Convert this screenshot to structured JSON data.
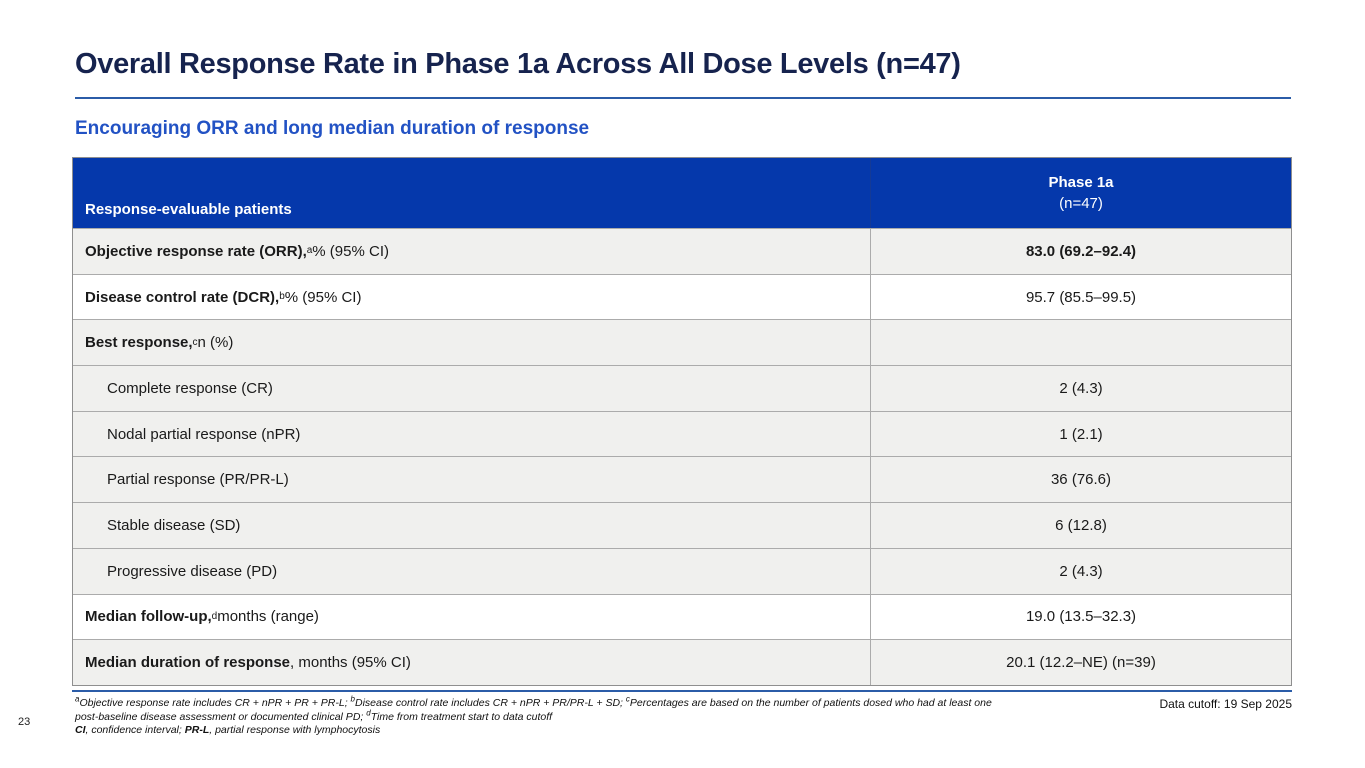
{
  "slide": {
    "title": "Overall Response Rate in Phase 1a Across All Dose Levels (n=47)",
    "subtitle": "Encouraging ORR and long median duration of response",
    "page_number": "23",
    "data_cutoff": "Data cutoff: 19 Sep 2025"
  },
  "colors": {
    "header_blue": "#0538AB",
    "title_navy": "#16234E",
    "subtitle_blue": "#2252C4",
    "row_shade_gray": "#F0F0EE",
    "rule_blue": "#2B5CA8",
    "border_gray": "#ABABAB"
  },
  "table": {
    "header": {
      "col1": "Response-evaluable patients",
      "col2_line1": "Phase 1a",
      "col2_line2": "(n=47)"
    },
    "rows": [
      {
        "label_bold": "Objective response rate (ORR),",
        "label_sup": "a",
        "label_rest": " % (95% CI)",
        "value": "83.0 (69.2–92.4)"
      },
      {
        "label_bold": "Disease control rate (DCR),",
        "label_sup": "b",
        "label_rest": " % (95% CI)",
        "value": "95.7 (85.5–99.5)"
      },
      {
        "label_bold": "Best response,",
        "label_sup": "c",
        "label_rest": " n (%)",
        "value": ""
      },
      {
        "label_bold": "",
        "label_sup": "",
        "label_rest": "Complete response (CR)",
        "value": "2 (4.3)"
      },
      {
        "label_bold": "",
        "label_sup": "",
        "label_rest": "Nodal partial response (nPR)",
        "value": "1 (2.1)"
      },
      {
        "label_bold": "",
        "label_sup": "",
        "label_rest": "Partial response (PR/PR-L)",
        "value": "36 (76.6)"
      },
      {
        "label_bold": "",
        "label_sup": "",
        "label_rest": "Stable disease (SD)",
        "value": "6 (12.8)"
      },
      {
        "label_bold": "",
        "label_sup": "",
        "label_rest": "Progressive disease (PD)",
        "value": "2 (4.3)"
      },
      {
        "label_bold": "Median follow-up,",
        "label_sup": "d",
        "label_rest": " months (range)",
        "value": "19.0 (13.5–32.3)"
      },
      {
        "label_bold": "Median duration of response",
        "label_sup": "",
        "label_rest": ", months (95% CI)",
        "value": "20.1 (12.2–NE) (n=39)"
      }
    ]
  },
  "footnotes": {
    "line1": {
      "sup1": "a",
      "t1": "Objective response rate includes CR + nPR + PR + PR-L; ",
      "sup2": "b",
      "t2": "Disease control rate includes CR + nPR + PR/PR-L + SD; ",
      "sup3": "c",
      "t3": "Percentages are based on the number of patients dosed who had at least one"
    },
    "line2": {
      "t1": "post-baseline disease assessment or documented clinical PD; ",
      "sup1": "d",
      "t2": "Time from treatment start to data cutoff"
    },
    "line3": {
      "b1": "CI",
      "t1": ", confidence interval; ",
      "b2": "PR-L",
      "t2": ", partial response with lymphocytosis"
    }
  }
}
